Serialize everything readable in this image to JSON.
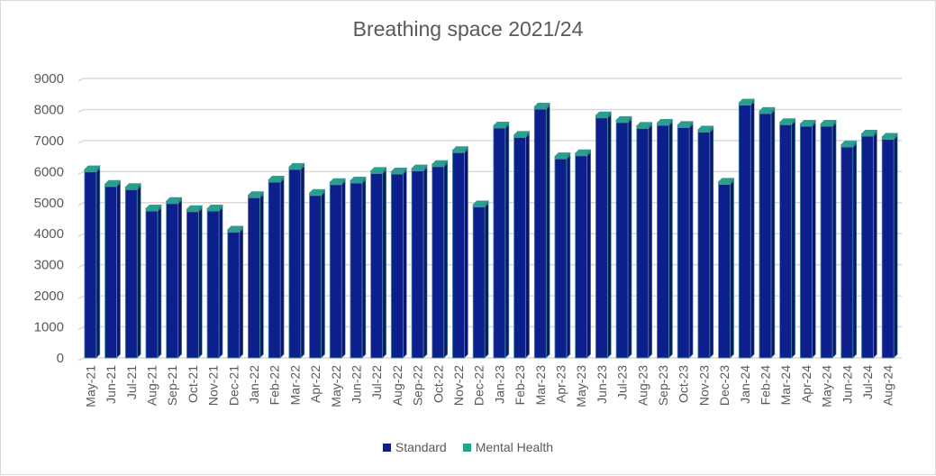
{
  "chart_data": {
    "type": "bar",
    "stacked": true,
    "style": "3d-column",
    "title": "Breathing space 2021/24",
    "xlabel": "",
    "ylabel": "",
    "ylim": [
      0,
      9000
    ],
    "yticks": [
      0,
      1000,
      2000,
      3000,
      4000,
      5000,
      6000,
      7000,
      8000,
      9000
    ],
    "grid": true,
    "legend_position": "bottom",
    "categories": [
      "May-21",
      "Jun-21",
      "Jul-21",
      "Aug-21",
      "Sep-21",
      "Oct-21",
      "Nov-21",
      "Dec-21",
      "Jan-22",
      "Feb-22",
      "Mar-22",
      "Apr-22",
      "May-22",
      "Jun-22",
      "Jul-22",
      "Aug-22",
      "Sep-22",
      "Oct-22",
      "Nov-22",
      "Dec-22",
      "Jan-23",
      "Feb-23",
      "Mar-23",
      "Apr-23",
      "May-23",
      "Jun-23",
      "Jul-23",
      "Aug-23",
      "Sep-23",
      "Oct-23",
      "Nov-23",
      "Dec-23",
      "Jan-24",
      "Feb-24",
      "Mar-24",
      "Apr-24",
      "May-24",
      "Jun-24",
      "Jul-24",
      "Aug-24"
    ],
    "series": [
      {
        "name": "Standard",
        "color": "#0c1f8c",
        "values": [
          5990,
          5520,
          5420,
          4730,
          4970,
          4710,
          4730,
          4050,
          5160,
          5660,
          6070,
          5230,
          5580,
          5630,
          5940,
          5920,
          6020,
          6160,
          6610,
          4860,
          7400,
          7100,
          8010,
          6410,
          6510,
          7730,
          7580,
          7390,
          7490,
          7420,
          7270,
          5590,
          8140,
          7870,
          7510,
          7460,
          7460,
          6790,
          7140,
          7040
        ]
      },
      {
        "name": "Mental Health",
        "color": "#23a38a",
        "values": [
          80,
          80,
          80,
          80,
          80,
          80,
          80,
          80,
          80,
          80,
          80,
          80,
          80,
          80,
          80,
          80,
          80,
          80,
          80,
          80,
          80,
          80,
          80,
          80,
          80,
          80,
          80,
          80,
          80,
          80,
          80,
          80,
          80,
          80,
          80,
          80,
          80,
          80,
          80,
          80
        ]
      }
    ]
  }
}
